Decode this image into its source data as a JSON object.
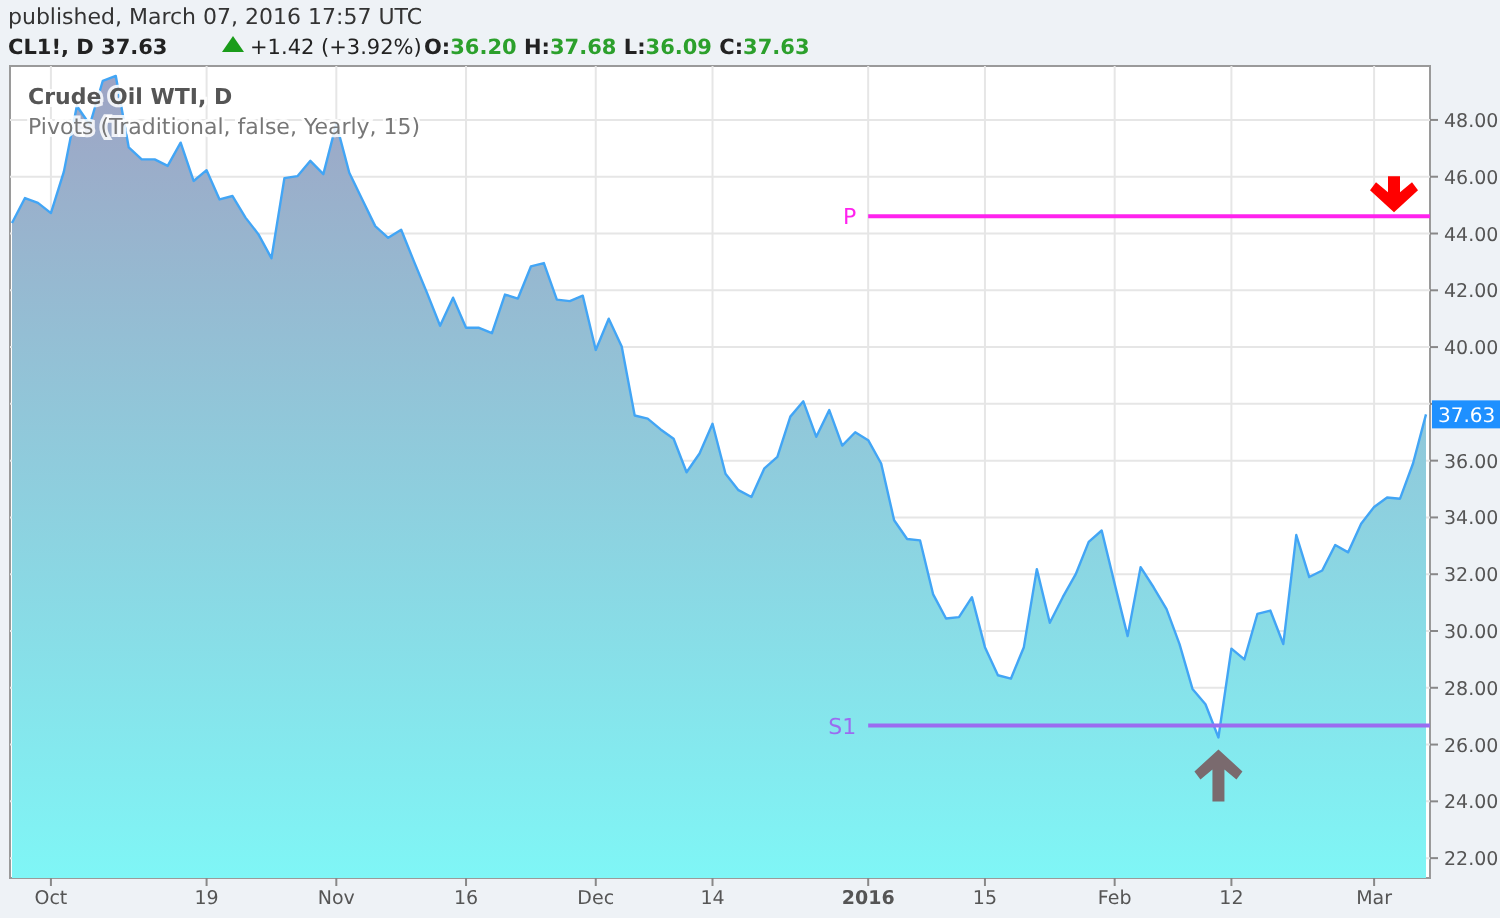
{
  "chart_data": {
    "type": "area",
    "title": "Crude Oil WTI, D",
    "subtitle": "Pivots (Traditional, false, Yearly, 15)",
    "annotations": [
      "published, March 07, 2016 17:57 UTC",
      "CL1!, D  37.63",
      "+1.42 (+3.92%)",
      "O:36.20 H:37.68 L:36.09 C:37.63"
    ],
    "categories": [
      null,
      null,
      null,
      "Oct",
      null,
      null,
      null,
      null,
      null,
      null,
      null,
      null,
      null,
      null,
      null,
      "19",
      null,
      null,
      null,
      null,
      null,
      null,
      null,
      null,
      null,
      "Nov",
      null,
      null,
      null,
      null,
      null,
      null,
      null,
      null,
      null,
      "16",
      null,
      null,
      null,
      null,
      null,
      null,
      null,
      null,
      null,
      "Dec",
      null,
      null,
      null,
      null,
      null,
      null,
      null,
      null,
      "14",
      null,
      null,
      null,
      null,
      null,
      null,
      null,
      null,
      null,
      null,
      null,
      "2016",
      null,
      null,
      null,
      null,
      null,
      null,
      null,
      null,
      "15",
      null,
      null,
      null,
      null,
      null,
      null,
      null,
      null,
      null,
      "Feb",
      null,
      null,
      null,
      null,
      null,
      null,
      null,
      null,
      "12",
      null,
      null,
      null,
      null,
      null,
      null,
      null,
      null,
      null,
      null,
      "Mar",
      null,
      null,
      null,
      null
    ],
    "series": [
      {
        "color": "#42a5f5",
        "values": [
          44.37,
          45.25,
          45.08,
          44.72,
          46.18,
          48.49,
          47.83,
          49.38,
          49.55,
          47.03,
          46.61,
          46.61,
          46.38,
          47.2,
          45.85,
          46.23,
          45.2,
          45.32,
          44.56,
          43.97,
          43.13,
          45.95,
          46.02,
          46.56,
          46.09,
          47.86,
          46.14,
          45.2,
          44.26,
          43.85,
          44.13,
          43.0,
          41.9,
          40.75,
          41.74,
          40.68,
          40.68,
          40.49,
          41.85,
          41.71,
          42.84,
          42.96,
          41.67,
          41.62,
          41.81,
          39.9,
          41.0,
          40.02,
          37.59,
          37.48,
          37.1,
          36.77,
          35.59,
          36.25,
          37.3,
          35.54,
          34.96,
          34.72,
          35.73,
          36.13,
          37.55,
          38.09,
          36.84,
          37.78,
          36.53,
          37.0,
          36.72,
          35.9,
          33.9,
          33.24,
          33.19,
          31.3,
          30.44,
          30.49,
          31.19,
          29.43,
          28.44,
          28.32,
          29.43,
          32.18,
          30.29,
          31.19,
          32.0,
          33.14,
          33.54,
          31.66,
          29.82,
          32.25,
          31.54,
          30.77,
          29.54,
          27.96,
          27.42,
          26.25,
          29.38,
          29.0,
          30.6,
          30.72,
          29.54,
          33.38,
          31.9,
          32.13,
          33.03,
          32.77,
          33.78,
          34.37,
          34.7,
          34.66,
          35.9,
          37.63
        ],
        "value_labels": [
          null,
          null,
          null,
          null,
          null,
          null,
          null,
          null,
          null,
          null,
          null,
          null,
          null,
          null,
          null,
          null,
          null,
          null,
          null,
          null,
          null,
          null,
          null,
          null,
          null,
          null,
          null,
          null,
          null,
          null,
          null,
          null,
          null,
          null,
          null,
          null,
          null,
          null,
          null,
          null,
          null,
          null,
          null,
          null,
          null,
          null,
          null,
          null,
          null,
          null,
          null,
          null,
          null,
          null,
          null,
          null,
          null,
          null,
          null,
          null,
          null,
          null,
          null,
          null,
          null,
          null,
          null,
          null,
          null,
          null,
          null,
          null,
          null,
          null,
          null,
          null,
          null,
          null,
          null,
          null,
          null,
          null,
          null,
          null,
          null,
          null,
          null,
          null,
          null,
          null,
          null,
          null,
          null,
          null,
          null,
          null,
          null,
          null,
          null,
          null,
          null,
          null,
          null,
          null,
          null,
          null,
          null,
          null,
          null,
          "37.63"
        ]
      }
    ],
    "ylim": [
      21.3,
      49.9
    ],
    "yticks": [
      {
        "value": 22,
        "label": "22.00"
      },
      {
        "value": 24,
        "label": "24.00"
      },
      {
        "value": 26,
        "label": "26.00"
      },
      {
        "value": 28,
        "label": "28.00"
      },
      {
        "value": 30,
        "label": "30.00"
      },
      {
        "value": 32,
        "label": "32.00"
      },
      {
        "value": 34,
        "label": "34.00"
      },
      {
        "value": 36,
        "label": "36.00"
      },
      {
        "value": 38,
        "label": null
      },
      {
        "value": 40,
        "label": "40.00"
      },
      {
        "value": 42,
        "label": "42.00"
      },
      {
        "value": 44,
        "label": "44.00"
      },
      {
        "value": 46,
        "label": "46.00"
      },
      {
        "value": 48,
        "label": "48.00"
      }
    ],
    "ref_lines": [
      {
        "axis": "y",
        "value": 44.61,
        "label": "P",
        "color": "#ff22ee"
      },
      {
        "axis": "y",
        "value": 26.67,
        "label": "S1",
        "color": "#9b6cf0"
      }
    ],
    "grid": true,
    "line_style": "solid",
    "marker": "none"
  }
}
